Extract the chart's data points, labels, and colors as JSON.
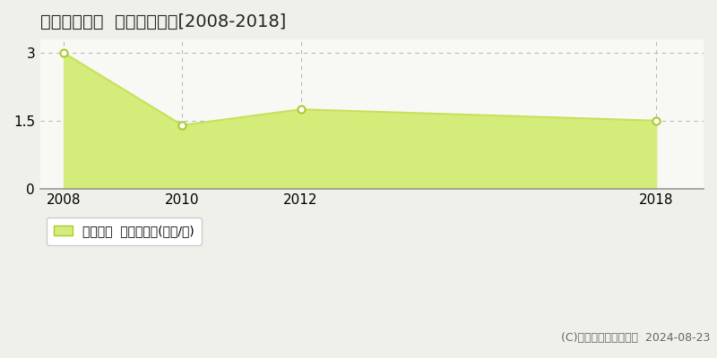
{
  "title": "深川市開西町  土地価格推移[2008-2018]",
  "years": [
    2008,
    2010,
    2012,
    2018
  ],
  "values": [
    3.0,
    1.4,
    1.75,
    1.5
  ],
  "line_color": "#c8e05a",
  "fill_color": "#d4ed7a",
  "marker_color": "#ffffff",
  "marker_edge_color": "#aacb30",
  "background_color": "#f0f0ea",
  "plot_bg_color": "#f8f8f4",
  "grid_color": "#bbbbbb",
  "yticks": [
    0,
    1.5,
    3
  ],
  "xticks": [
    2008,
    2010,
    2012,
    2018
  ],
  "ylim": [
    0,
    3.3
  ],
  "xlim": [
    2007.6,
    2018.8
  ],
  "legend_label": "土地価格  平均坪単価(万円/坪)",
  "copyright_text": "(C)土地価格ドットコム  2024-08-23",
  "title_fontsize": 14,
  "tick_fontsize": 11,
  "legend_fontsize": 10,
  "copyright_fontsize": 9
}
